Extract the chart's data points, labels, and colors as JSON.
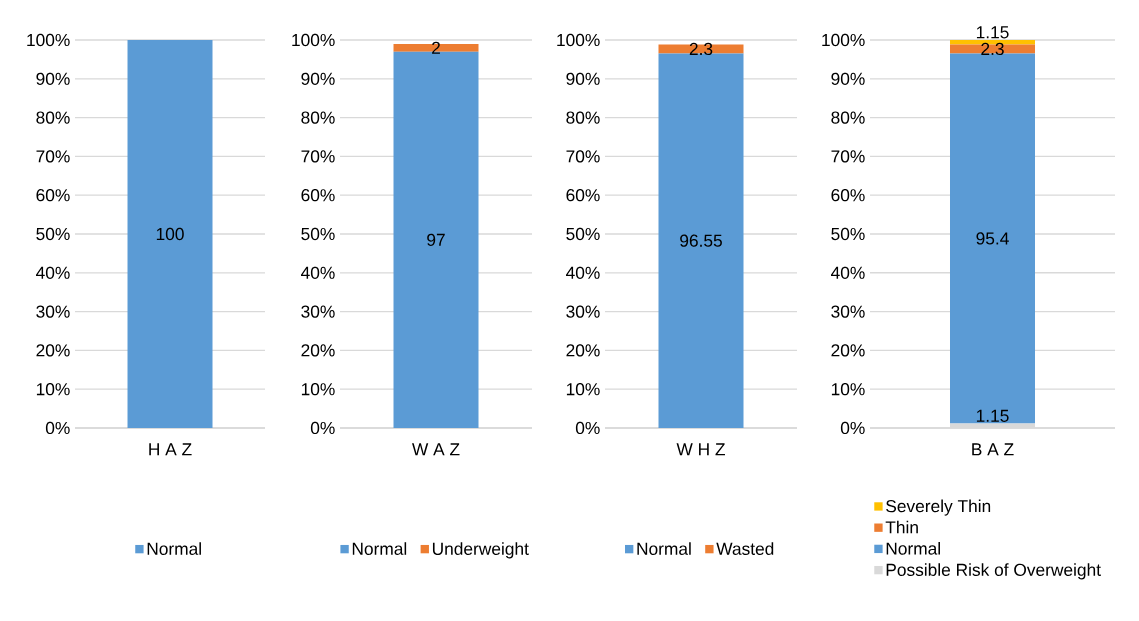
{
  "chart_data": [
    {
      "type": "bar",
      "stacked": true,
      "categories": [
        "H A Z"
      ],
      "series": [
        {
          "name": "Normal",
          "color": "#5b9bd5",
          "values": [
            100
          ]
        }
      ],
      "ylim": [
        0,
        100
      ],
      "yticks": [
        {
          "value": 0,
          "label": "0%"
        },
        {
          "value": 10,
          "label": "10%"
        },
        {
          "value": 20,
          "label": "20%"
        },
        {
          "value": 30,
          "label": "30%"
        },
        {
          "value": 40,
          "label": "40%"
        },
        {
          "value": 50,
          "label": "50%"
        },
        {
          "value": 60,
          "label": "60%"
        },
        {
          "value": 70,
          "label": "70%"
        },
        {
          "value": 80,
          "label": "80%"
        },
        {
          "value": 90,
          "label": "90%"
        },
        {
          "value": 100,
          "label": "100%"
        }
      ],
      "grid": "y",
      "legend": "bottom",
      "data_labels": true
    },
    {
      "type": "bar",
      "stacked": true,
      "categories": [
        "W A Z"
      ],
      "series": [
        {
          "name": "Normal",
          "color": "#5b9bd5",
          "values": [
            97
          ]
        },
        {
          "name": "Underweight",
          "color": "#ed7d31",
          "values": [
            2
          ]
        }
      ],
      "ylim": [
        0,
        100
      ],
      "yticks": [
        {
          "value": 0,
          "label": "0%"
        },
        {
          "value": 10,
          "label": "10%"
        },
        {
          "value": 20,
          "label": "20%"
        },
        {
          "value": 30,
          "label": "30%"
        },
        {
          "value": 40,
          "label": "40%"
        },
        {
          "value": 50,
          "label": "50%"
        },
        {
          "value": 60,
          "label": "60%"
        },
        {
          "value": 70,
          "label": "70%"
        },
        {
          "value": 80,
          "label": "80%"
        },
        {
          "value": 90,
          "label": "90%"
        },
        {
          "value": 100,
          "label": "100%"
        }
      ],
      "grid": "y",
      "legend": "bottom",
      "data_labels": true
    },
    {
      "type": "bar",
      "stacked": true,
      "categories": [
        "W H Z"
      ],
      "series": [
        {
          "name": "Normal",
          "color": "#5b9bd5",
          "values": [
            96.55
          ]
        },
        {
          "name": "Wasted",
          "color": "#ed7d31",
          "values": [
            2.3
          ]
        }
      ],
      "ylim": [
        0,
        100
      ],
      "yticks": [
        {
          "value": 0,
          "label": "0%"
        },
        {
          "value": 10,
          "label": "10%"
        },
        {
          "value": 20,
          "label": "20%"
        },
        {
          "value": 30,
          "label": "30%"
        },
        {
          "value": 40,
          "label": "40%"
        },
        {
          "value": 50,
          "label": "50%"
        },
        {
          "value": 60,
          "label": "60%"
        },
        {
          "value": 70,
          "label": "70%"
        },
        {
          "value": 80,
          "label": "80%"
        },
        {
          "value": 90,
          "label": "90%"
        },
        {
          "value": 100,
          "label": "100%"
        }
      ],
      "grid": "y",
      "legend": "bottom",
      "data_labels": true
    },
    {
      "type": "bar",
      "stacked": true,
      "categories": [
        "B A Z"
      ],
      "series": [
        {
          "name": "Possible Risk of Overweight",
          "color": "#d9d9d9",
          "values": [
            1.15
          ]
        },
        {
          "name": "Normal",
          "color": "#5b9bd5",
          "values": [
            95.4
          ]
        },
        {
          "name": "Thin",
          "color": "#ed7d31",
          "values": [
            2.3
          ]
        },
        {
          "name": "Severely Thin",
          "color": "#ffc000",
          "values": [
            1.15
          ]
        }
      ],
      "ylim": [
        0,
        100
      ],
      "yticks": [
        {
          "value": 0,
          "label": "0%"
        },
        {
          "value": 10,
          "label": "10%"
        },
        {
          "value": 20,
          "label": "20%"
        },
        {
          "value": 30,
          "label": "30%"
        },
        {
          "value": 40,
          "label": "40%"
        },
        {
          "value": 50,
          "label": "50%"
        },
        {
          "value": 60,
          "label": "60%"
        },
        {
          "value": 70,
          "label": "70%"
        },
        {
          "value": 80,
          "label": "80%"
        },
        {
          "value": 90,
          "label": "90%"
        },
        {
          "value": 100,
          "label": "100%"
        }
      ],
      "grid": "y",
      "legend": "bottom",
      "data_labels": true
    }
  ]
}
